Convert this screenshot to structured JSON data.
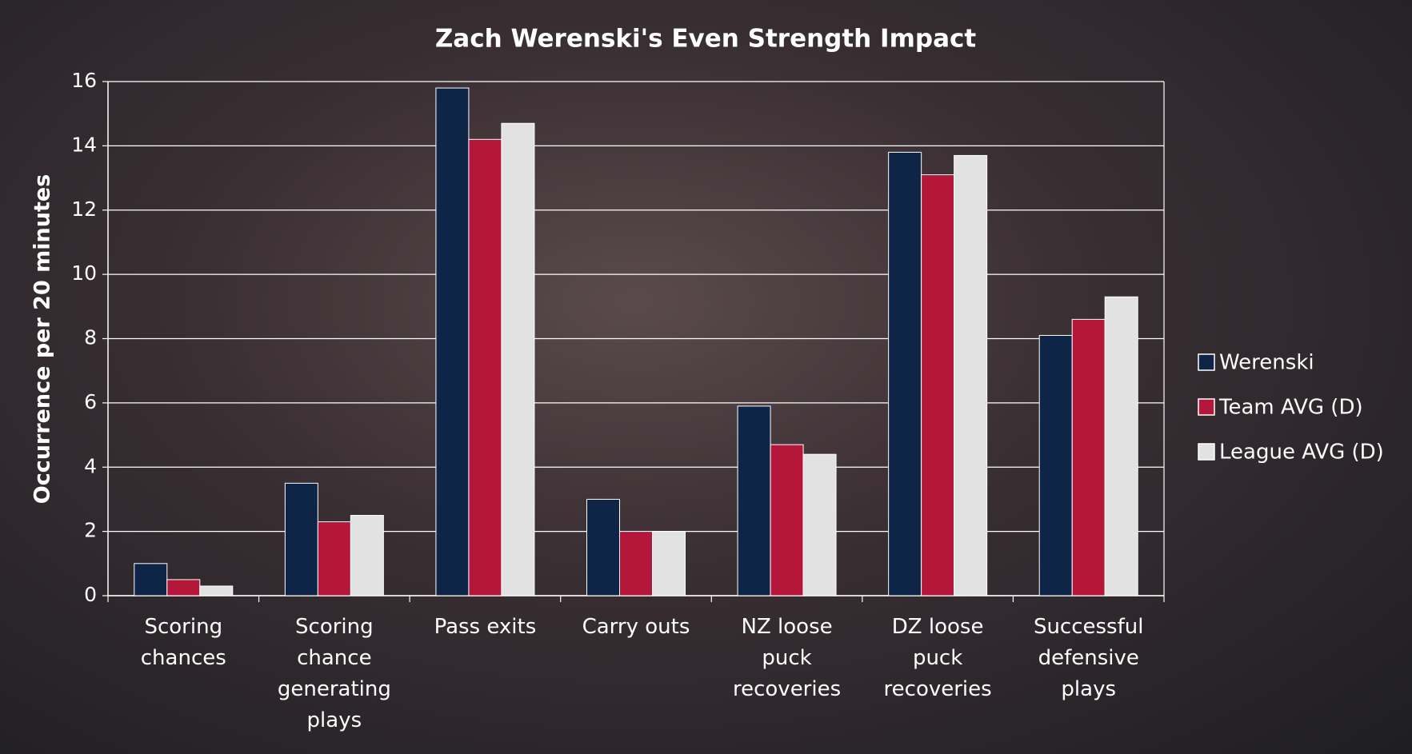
{
  "chart_data": {
    "type": "bar",
    "title": "Zach Werenski's Even Strength Impact",
    "y_label": "Occurrence per 20 minutes",
    "categories": [
      "Scoring chances",
      "Scoring chance generating plays",
      "Pass exits",
      "Carry outs",
      "NZ loose puck recoveries",
      "DZ loose puck recoveries",
      "Successful defensive plays"
    ],
    "series": [
      {
        "name": "Werenski",
        "color": "#0f2548",
        "values": [
          1.0,
          3.5,
          15.8,
          3.0,
          5.9,
          13.8,
          8.1
        ]
      },
      {
        "name": "Team AVG (D)",
        "color": "#b5173a",
        "values": [
          0.5,
          2.3,
          14.2,
          2.0,
          4.7,
          13.1,
          8.6
        ]
      },
      {
        "name": "League AVG (D)",
        "color": "#e2e2e2",
        "values": [
          0.3,
          2.5,
          14.7,
          2.0,
          4.4,
          13.7,
          9.3
        ]
      }
    ],
    "ylim": [
      0,
      16
    ],
    "yticks": [
      0,
      2,
      4,
      6,
      8,
      10,
      12,
      14,
      16
    ],
    "grid": true,
    "legend": "right"
  }
}
